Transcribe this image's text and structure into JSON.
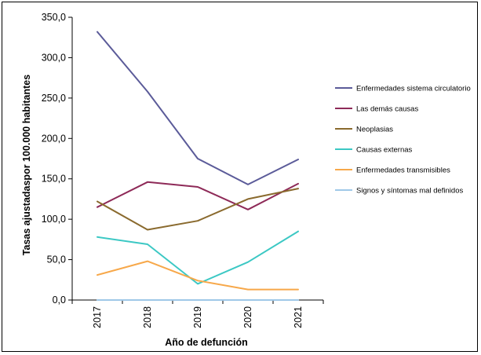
{
  "chart_data": {
    "type": "line",
    "xlabel": "Año de defunción",
    "ylabel": "Tasas ajustadaspor 100.000 habitantes",
    "categories": [
      "2017",
      "2018",
      "2019",
      "2020",
      "2021"
    ],
    "ylim": [
      0,
      350
    ],
    "yticks": [
      "0,0",
      "50,0",
      "100,0",
      "150,0",
      "200,0",
      "250,0",
      "300,0",
      "350,0"
    ],
    "grid": false,
    "legend_position": "right",
    "series": [
      {
        "name": "Enfermedades sistema circulatorio",
        "color": "#5b5b99",
        "values": [
          332,
          258,
          175,
          143,
          174
        ]
      },
      {
        "name": "Las demás causas",
        "color": "#8e2a58",
        "values": [
          115,
          146,
          140,
          112,
          144
        ]
      },
      {
        "name": "Neoplasias",
        "color": "#8a6a2e",
        "values": [
          122,
          87,
          98,
          125,
          138
        ]
      },
      {
        "name": "Causas externas",
        "color": "#3cc8c4",
        "values": [
          78,
          69,
          20,
          47,
          85
        ]
      },
      {
        "name": "Enfermedades transmisibles",
        "color": "#f7a84a",
        "values": [
          31,
          48,
          24,
          13,
          13
        ]
      },
      {
        "name": "Signos y síntomas mal definidos",
        "color": "#9fc8e8",
        "values": [
          0,
          0,
          0,
          0,
          0
        ]
      }
    ]
  }
}
